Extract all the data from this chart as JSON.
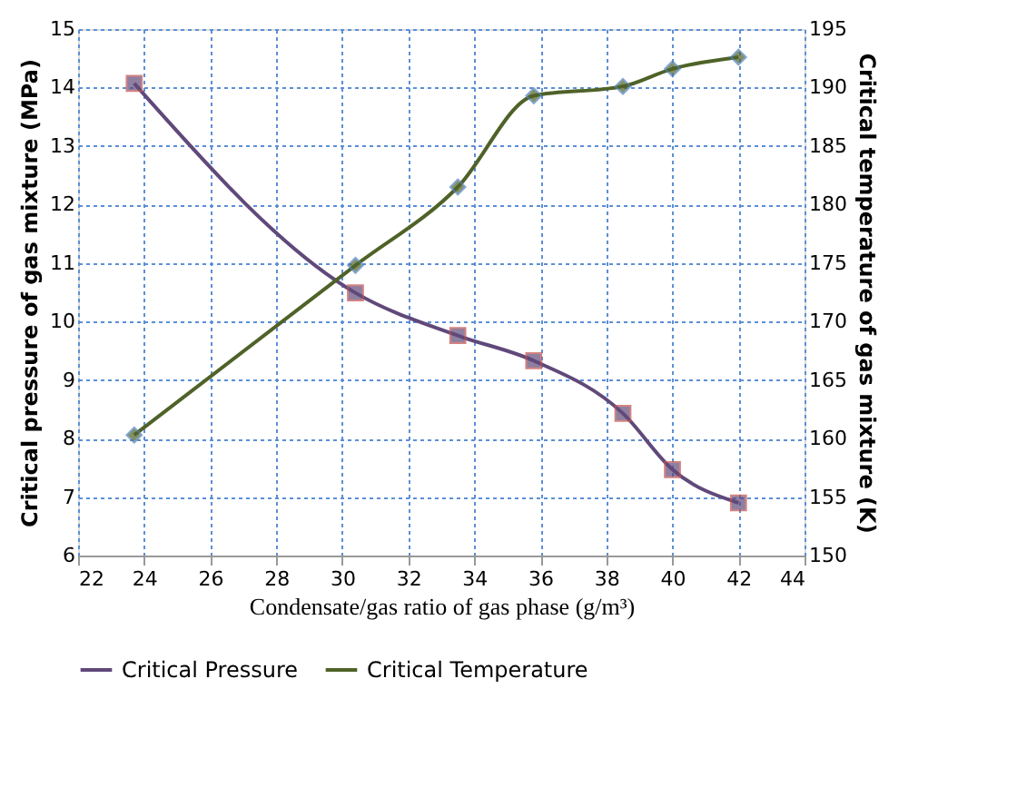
{
  "chart_data": {
    "type": "line",
    "xlabel": "Condensate/gas ratio of gas phase (g/m³)",
    "ylabel": "Critical pressure of gas mixture (MPa)",
    "y2label": "Critical temperature of gas mixture (K)",
    "xlim": [
      22,
      44
    ],
    "xticks": [
      22,
      24,
      26,
      28,
      30,
      32,
      34,
      36,
      38,
      40,
      42,
      44
    ],
    "ylim": [
      6,
      15
    ],
    "yticks": [
      6,
      7,
      8,
      9,
      10,
      11,
      12,
      13,
      14,
      15
    ],
    "y2lim": [
      150,
      195
    ],
    "y2ticks": [
      150,
      155,
      160,
      165,
      170,
      175,
      180,
      185,
      190,
      195
    ],
    "grid": true,
    "legend": "bottom",
    "line_style": "solid",
    "series": [
      {
        "name": "Critical Pressure",
        "color": "#60497a",
        "marker": "square",
        "x": [
          23.7,
          30.4,
          33.5,
          35.8,
          38.5,
          40.0,
          42.0
        ],
        "values": [
          14.07,
          10.49,
          9.76,
          9.33,
          8.43,
          7.47,
          6.9
        ]
      },
      {
        "name": "Critical Temperature",
        "color": "#4f6228",
        "marker": "diamond",
        "axis": "y2",
        "x": [
          23.7,
          30.4,
          33.5,
          35.8,
          38.5,
          40.0,
          42.0
        ],
        "values": [
          160.3,
          174.8,
          181.5,
          189.3,
          190.1,
          191.6,
          192.6
        ]
      }
    ]
  }
}
